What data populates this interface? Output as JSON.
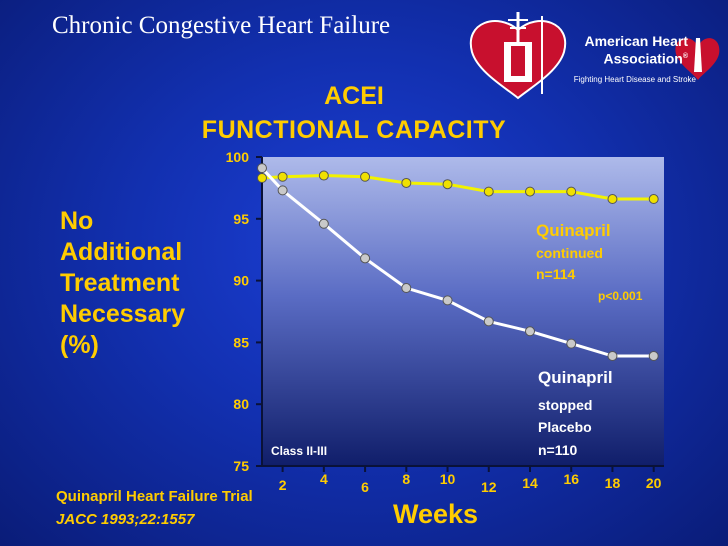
{
  "slide": {
    "title": "Chronic Congestive Heart Failure",
    "heading_line1": "ACEI",
    "heading_line2": "FUNCTIONAL CAPACITY",
    "side_label": [
      "No",
      "Additional",
      "Treatment",
      "Necessary",
      "(%)"
    ],
    "footer_trial": "Quinapril Heart Failure Trial",
    "footer_citation": "JACC 1993;22:1557"
  },
  "logo": {
    "org_name_line1": "American Heart",
    "org_name_line2": "Association",
    "registered_mark": "®",
    "tagline": "Fighting Heart Disease and Stroke",
    "icon": "aha-heart-torch-icon",
    "crest_icon": "heart-crest-icon"
  },
  "colors": {
    "accent": "#ffcc00",
    "line_continued": "#f2f200",
    "line_stopped": "#ffffff",
    "marker_stopped": "#c9c9c9",
    "marker_continued": "#f0e000"
  },
  "chart_data": {
    "type": "line",
    "title": "ACEI FUNCTIONAL CAPACITY",
    "xlabel": "Weeks",
    "ylabel": "No Additional Treatment Necessary (%)",
    "x": [
      2,
      4,
      6,
      8,
      10,
      12,
      14,
      16,
      18,
      20
    ],
    "xlim": [
      1,
      20.5
    ],
    "ylim": [
      75,
      100
    ],
    "yticks": [
      75,
      80,
      85,
      90,
      95,
      100
    ],
    "grid": false,
    "series": [
      {
        "name": "Quinapril continued",
        "n_label": "n=114",
        "values": [
          98.4,
          98.5,
          98.4,
          97.9,
          97.8,
          97.2,
          97.2,
          97.2,
          96.6,
          96.6
        ],
        "extra_start_point": [
          1.0,
          98.3
        ]
      },
      {
        "name": "Quinapril stopped Placebo",
        "n_label": "n=110",
        "values": [
          97.3,
          94.6,
          91.8,
          89.4,
          88.4,
          86.7,
          85.9,
          84.9,
          83.9,
          83.9
        ],
        "extra_start_point": [
          1.0,
          99.1
        ]
      }
    ],
    "annotations": {
      "continued_line1": "Quinapril",
      "continued_line2": "continued",
      "continued_n": "n=114",
      "pvalue": "p<0.001",
      "stopped_line1": "Quinapril",
      "stopped_line2": "stopped",
      "stopped_line3": "Placebo",
      "stopped_n": "n=110",
      "class_label": "Class II-III"
    }
  }
}
